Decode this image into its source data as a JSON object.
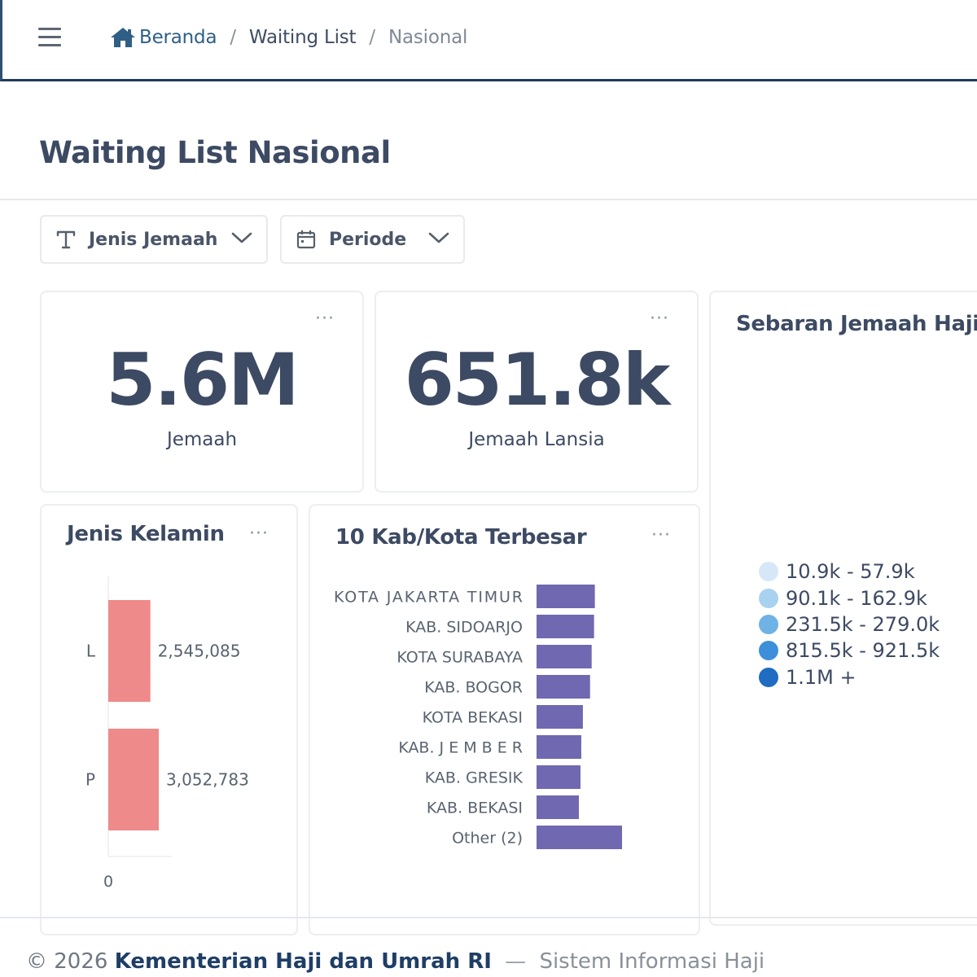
{
  "breadcrumb": {
    "home": "Beranda",
    "middle": "Waiting List",
    "current": "Nasional",
    "separator": "/"
  },
  "page": {
    "title": "Waiting List Nasional"
  },
  "filters": {
    "jenis_jemaah": {
      "label": "Jenis Jemaah",
      "icon": "text-type-icon"
    },
    "periode": {
      "label": "Periode",
      "icon": "calendar-icon"
    }
  },
  "kpi": {
    "total": {
      "value": "5.6M",
      "caption": "Jemaah"
    },
    "lansia": {
      "value": "651.8k",
      "caption": "Jemaah Lansia"
    }
  },
  "more_label": "···",
  "gender_chart": {
    "title": "Jenis Kelamin",
    "chart_data": {
      "type": "bar",
      "orientation": "horizontal",
      "categories": [
        "L",
        "P"
      ],
      "values": [
        2545085,
        3052783
      ],
      "value_labels": [
        "2,545,085",
        "3,052,783"
      ],
      "axis_tick_labels": [
        "0"
      ],
      "color": "#ef8a8a"
    }
  },
  "top_cities_chart": {
    "title": "10 Kab/Kota Terbesar",
    "chart_data": {
      "type": "bar",
      "orientation": "horizontal",
      "categories": [
        "KOTA JAKARTA TIMUR",
        "KAB. SIDOARJO",
        "KOTA SURABAYA",
        "KAB. BOGOR",
        "KOTA BEKASI",
        "KAB. J E M B E R",
        "KAB. GRESIK",
        "KAB. BEKASI",
        "Other (2)"
      ],
      "values": [
        73000,
        72000,
        69000,
        67000,
        58000,
        56000,
        55000,
        53000,
        107000
      ],
      "color": "#7068b0"
    }
  },
  "map_card": {
    "title": "Sebaran Jemaah Haji p",
    "legend": [
      {
        "label": "10.9k - 57.9k",
        "color": "#d6e8f7"
      },
      {
        "label": "90.1k - 162.9k",
        "color": "#a9d1f0"
      },
      {
        "label": "231.5k - 279.0k",
        "color": "#6fb2e6"
      },
      {
        "label": "815.5k - 921.5k",
        "color": "#3d8fd9"
      },
      {
        "label": "1.1M +",
        "color": "#1f6cc2"
      }
    ]
  },
  "footer": {
    "copyright": "© 2026",
    "org": "Kementerian Haji dan Umrah RI",
    "dash": "—",
    "system": "Sistem Informasi Haji"
  }
}
